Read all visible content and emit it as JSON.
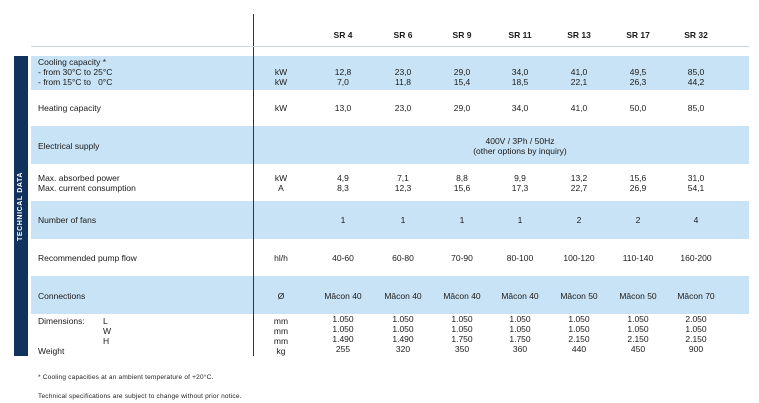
{
  "section_title": "TECHNICAL DATA",
  "models": [
    "SR 4",
    "SR 6",
    "SR 9",
    "SR 11",
    "SR 13",
    "SR 17",
    "SR 32"
  ],
  "rows": {
    "cooling": {
      "labels": [
        "Cooling capacity *",
        "- from 30°C to 25°C",
        "- from 15°C to   0°C"
      ],
      "units": [
        "kW",
        "kW"
      ],
      "line1": [
        "12,8",
        "23,0",
        "29,0",
        "34,0",
        "41,0",
        "49,5",
        "85,0"
      ],
      "line2": [
        "7,0",
        "11,8",
        "15,4",
        "18,5",
        "22,1",
        "26,3",
        "44,2"
      ]
    },
    "heating": {
      "label": "Heating capacity",
      "unit": "kW",
      "values": [
        "13,0",
        "23,0",
        "29,0",
        "34,0",
        "41,0",
        "50,0",
        "85,0"
      ]
    },
    "electrical": {
      "label": "Electrical supply",
      "value_line1": "400V / 3Ph / 50Hz",
      "value_line2": "(other options by inquiry)"
    },
    "power": {
      "labels": [
        "Max. absorbed power",
        "Max. current consumption"
      ],
      "units": [
        "kW",
        "A"
      ],
      "line1": [
        "4,9",
        "7,1",
        "8,8",
        "9,9",
        "13,2",
        "15,6",
        "31,0"
      ],
      "line2": [
        "8,3",
        "12,3",
        "15,6",
        "17,3",
        "22,7",
        "26,9",
        "54,1"
      ]
    },
    "fans": {
      "label": "Number of fans",
      "values": [
        "1",
        "1",
        "1",
        "1",
        "2",
        "2",
        "4"
      ]
    },
    "pump": {
      "label": "Recommended pump flow",
      "unit": "hl/h",
      "values": [
        "40-60",
        "60-80",
        "70-90",
        "80-100",
        "100-120",
        "110-140",
        "160-200"
      ]
    },
    "connections": {
      "label": "Connections",
      "unit": "Ø",
      "values": [
        "Mâcon 40",
        "Mâcon 40",
        "Mâcon 40",
        "Mâcon 40",
        "Mâcon 50",
        "Mâcon 50",
        "Mâcon 70"
      ]
    },
    "dimensions": {
      "label": "Dimensions:",
      "axes": [
        "L",
        "W",
        "H"
      ],
      "units": [
        "mm",
        "mm",
        "mm"
      ],
      "L": [
        "1.050",
        "1.050",
        "1.050",
        "1.050",
        "1.050",
        "1.050",
        "2.050"
      ],
      "W": [
        "1.050",
        "1.050",
        "1.050",
        "1.050",
        "1.050",
        "1.050",
        "1.050"
      ],
      "H": [
        "1.490",
        "1.490",
        "1.750",
        "1.750",
        "2.150",
        "2.150",
        "2.150"
      ]
    },
    "weight": {
      "label": "Weight",
      "unit": "kg",
      "values": [
        "255",
        "320",
        "350",
        "360",
        "440",
        "450",
        "900"
      ]
    }
  },
  "footnotes": [
    "*  Cooling capacities at an ambient temperature of +20°C.",
    "Technical specifications are subject to change without prior notice."
  ],
  "colors": {
    "band": "#c8e3f5",
    "sidebar": "#12325e"
  }
}
